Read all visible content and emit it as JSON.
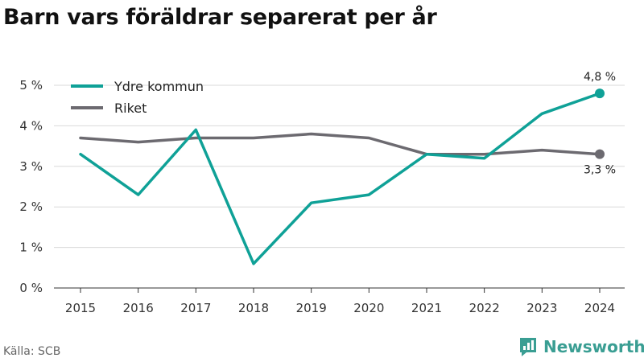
{
  "title": "Barn vars föräldrar separerat per år",
  "source": "Källa: SCB",
  "brand": {
    "name": "Newsworthy",
    "logo_icon": "newsworthy-logo-icon"
  },
  "colors": {
    "ydre": "#0fa197",
    "riket": "#6c6a70",
    "grid": "#d9d9d9",
    "axis": "#333333"
  },
  "chart_data": {
    "type": "line",
    "x": [
      "2015",
      "2016",
      "2017",
      "2018",
      "2019",
      "2020",
      "2021",
      "2022",
      "2023",
      "2024"
    ],
    "series": [
      {
        "name": "Ydre kommun",
        "values": [
          3.3,
          2.3,
          3.9,
          0.6,
          2.1,
          2.3,
          3.3,
          3.2,
          4.3,
          4.8
        ]
      },
      {
        "name": "Riket",
        "values": [
          3.7,
          3.6,
          3.7,
          3.7,
          3.8,
          3.7,
          3.3,
          3.3,
          3.4,
          3.3
        ]
      }
    ],
    "yticks": [
      "0 %",
      "1 %",
      "2 %",
      "3 %",
      "4 %",
      "5 %"
    ],
    "ylim": [
      0,
      5
    ],
    "end_labels": [
      "4,8 %",
      "3,3 %"
    ],
    "legend_position": "top-left",
    "grid": true
  }
}
